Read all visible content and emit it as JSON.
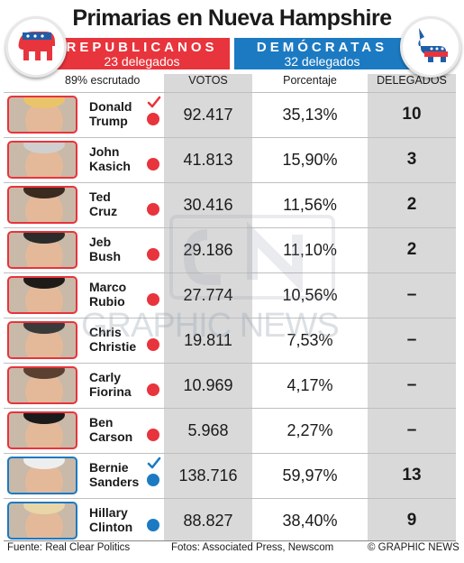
{
  "title": "Primarias en Nueva Hampshire",
  "republicans": {
    "name": "REPUBLICANOS",
    "delegates": "23 delegados",
    "logo_icon": "elephant-icon",
    "color": "#e8343c"
  },
  "democrats": {
    "name": "DEMÓCRATAS",
    "delegates": "32 delegados",
    "logo_icon": "donkey-icon",
    "color": "#1c7ac2"
  },
  "counted": "89% escrutado",
  "columns": {
    "votes": "VOTOS",
    "pct": "Porcentaje",
    "delegates": "DELEGADOS"
  },
  "candidates": [
    {
      "first": "Donald",
      "last": "Trump",
      "party": "rep",
      "winner": true,
      "votes": "92.417",
      "pct": "35,13%",
      "delegates": "10"
    },
    {
      "first": "John",
      "last": "Kasich",
      "party": "rep",
      "winner": false,
      "votes": "41.813",
      "pct": "15,90%",
      "delegates": "3"
    },
    {
      "first": "Ted",
      "last": "Cruz",
      "party": "rep",
      "winner": false,
      "votes": "30.416",
      "pct": "11,56%",
      "delegates": "2"
    },
    {
      "first": "Jeb",
      "last": "Bush",
      "party": "rep",
      "winner": false,
      "votes": "29.186",
      "pct": "11,10%",
      "delegates": "2"
    },
    {
      "first": "Marco",
      "last": "Rubio",
      "party": "rep",
      "winner": false,
      "votes": "27.774",
      "pct": "10,56%",
      "delegates": "–"
    },
    {
      "first": "Chris",
      "last": "Christie",
      "party": "rep",
      "winner": false,
      "votes": "19.811",
      "pct": "7,53%",
      "delegates": "–"
    },
    {
      "first": "Carly",
      "last": "Fiorina",
      "party": "rep",
      "winner": false,
      "votes": "10.969",
      "pct": "4,17%",
      "delegates": "–"
    },
    {
      "first": "Ben",
      "last": "Carson",
      "party": "rep",
      "winner": false,
      "votes": "5.968",
      "pct": "2,27%",
      "delegates": "–"
    },
    {
      "first": "Bernie",
      "last": "Sanders",
      "party": "dem",
      "winner": true,
      "votes": "138.716",
      "pct": "59,97%",
      "delegates": "13"
    },
    {
      "first": "Hillary",
      "last": "Clinton",
      "party": "dem",
      "winner": false,
      "votes": "88.827",
      "pct": "38,40%",
      "delegates": "9"
    }
  ],
  "footer": {
    "source": "Fuente: Real Clear Politics",
    "photos": "Fotos: Associated Press, Newscom",
    "copyright": "© GRAPHIC NEWS"
  },
  "watermark": "GRAPHIC NEWS"
}
